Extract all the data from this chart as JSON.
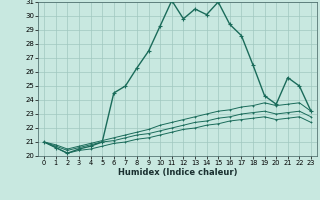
{
  "xlabel": "Humidex (Indice chaleur)",
  "bg_color": "#c8e8e0",
  "grid_color": "#a0c8c0",
  "line_color": "#1a6b5a",
  "x_values": [
    0,
    1,
    2,
    3,
    4,
    5,
    6,
    7,
    8,
    9,
    10,
    11,
    12,
    13,
    14,
    15,
    16,
    17,
    18,
    19,
    20,
    21,
    22,
    23
  ],
  "main_line": [
    21.0,
    20.6,
    20.2,
    20.5,
    20.7,
    21.0,
    24.5,
    25.0,
    26.3,
    27.5,
    29.3,
    31.1,
    29.8,
    30.5,
    30.1,
    31.0,
    29.4,
    28.6,
    26.5,
    24.3,
    23.7,
    25.6,
    25.0,
    23.2
  ],
  "line2": [
    21.0,
    20.8,
    20.5,
    20.7,
    20.9,
    21.1,
    21.3,
    21.5,
    21.7,
    21.9,
    22.2,
    22.4,
    22.6,
    22.8,
    23.0,
    23.2,
    23.3,
    23.5,
    23.6,
    23.8,
    23.6,
    23.7,
    23.8,
    23.2
  ],
  "line3": [
    21.0,
    20.7,
    20.4,
    20.6,
    20.8,
    21.0,
    21.1,
    21.3,
    21.5,
    21.6,
    21.8,
    22.0,
    22.2,
    22.4,
    22.5,
    22.7,
    22.8,
    23.0,
    23.1,
    23.2,
    23.0,
    23.1,
    23.2,
    22.8
  ],
  "line4": [
    21.0,
    20.6,
    20.2,
    20.4,
    20.5,
    20.7,
    20.9,
    21.0,
    21.2,
    21.3,
    21.5,
    21.7,
    21.9,
    22.0,
    22.2,
    22.3,
    22.5,
    22.6,
    22.7,
    22.8,
    22.6,
    22.7,
    22.8,
    22.4
  ],
  "ylim": [
    20,
    31
  ],
  "xlim": [
    -0.5,
    23.5
  ],
  "yticks": [
    20,
    21,
    22,
    23,
    24,
    25,
    26,
    27,
    28,
    29,
    30,
    31
  ],
  "xticks": [
    0,
    1,
    2,
    3,
    4,
    5,
    6,
    7,
    8,
    9,
    10,
    11,
    12,
    13,
    14,
    15,
    16,
    17,
    18,
    19,
    20,
    21,
    22,
    23
  ]
}
